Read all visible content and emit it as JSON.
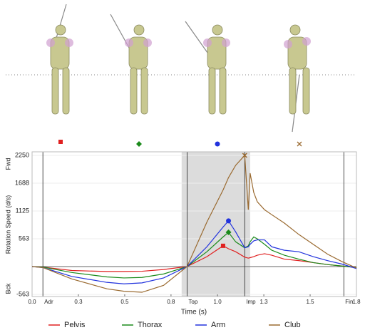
{
  "chart_data": {
    "type": "line",
    "ylabel": "Rotation Speed (d/s)",
    "ylabel_top": "Fwd",
    "ylabel_bottom": "Bck",
    "xlabel": "Time (s)",
    "x": [
      0,
      0.06,
      0.22,
      0.415,
      0.51,
      0.61,
      0.73,
      0.86,
      0.97,
      1.06,
      1.09,
      1.13,
      1.18,
      1.2,
      1.21,
      1.23,
      1.25,
      1.29,
      1.33,
      1.4,
      1.48,
      1.56,
      1.64,
      1.72,
      1.8
    ],
    "series": [
      {
        "name": "Pelvis",
        "color": "#e02020",
        "marker": "square",
        "values": [
          0,
          -10,
          -80,
          -100,
          -100,
          -95,
          -60,
          0,
          200,
          420,
          360,
          300,
          190,
          170,
          180,
          200,
          230,
          260,
          230,
          150,
          120,
          80,
          40,
          10,
          -20
        ]
      },
      {
        "name": "Thorax",
        "color": "#1a8a1a",
        "marker": "diamond",
        "values": [
          0,
          -10,
          -120,
          -210,
          -230,
          -220,
          -150,
          0,
          300,
          600,
          693,
          500,
          380,
          420,
          500,
          600,
          560,
          450,
          330,
          230,
          150,
          80,
          40,
          10,
          -20
        ]
      },
      {
        "name": "Arm",
        "color": "#2233dd",
        "marker": "circle",
        "values": [
          0,
          -20,
          -200,
          -320,
          -350,
          -330,
          -230,
          0,
          400,
          800,
          925,
          700,
          380,
          400,
          450,
          520,
          540,
          540,
          400,
          330,
          300,
          200,
          120,
          50,
          -40
        ]
      },
      {
        "name": "Club",
        "color": "#9a6a30",
        "marker": "x",
        "values": [
          0,
          -20,
          -250,
          -450,
          -500,
          -520,
          -380,
          0,
          900,
          1550,
          1800,
          2050,
          2250,
          1150,
          1890,
          1500,
          1310,
          1150,
          1050,
          880,
          650,
          450,
          250,
          100,
          -30
        ]
      }
    ],
    "xlim": [
      0,
      1.8
    ],
    "xticks": [
      {
        "value": 0,
        "label": "0.0"
      },
      {
        "value": 0.257,
        "label": "0.3"
      },
      {
        "value": 0.514,
        "label": "0.5"
      },
      {
        "value": 0.771,
        "label": "0.8"
      },
      {
        "value": 1.029,
        "label": "1.0"
      },
      {
        "value": 1.286,
        "label": "1.3"
      },
      {
        "value": 1.543,
        "label": "1.5"
      },
      1.8
    ],
    "ylim": [
      -563,
      2250
    ],
    "yticks": [
      -563,
      563,
      1125,
      1688,
      2250
    ],
    "events": [
      {
        "label": "Adr",
        "value": 0.06
      },
      {
        "label": "Top",
        "value": 0.86
      },
      {
        "label": "Imp",
        "value": 1.18
      },
      {
        "label": "Fin",
        "value": 1.73
      }
    ],
    "shaded_range": [
      0.83,
      1.21
    ],
    "grid": true
  }
}
